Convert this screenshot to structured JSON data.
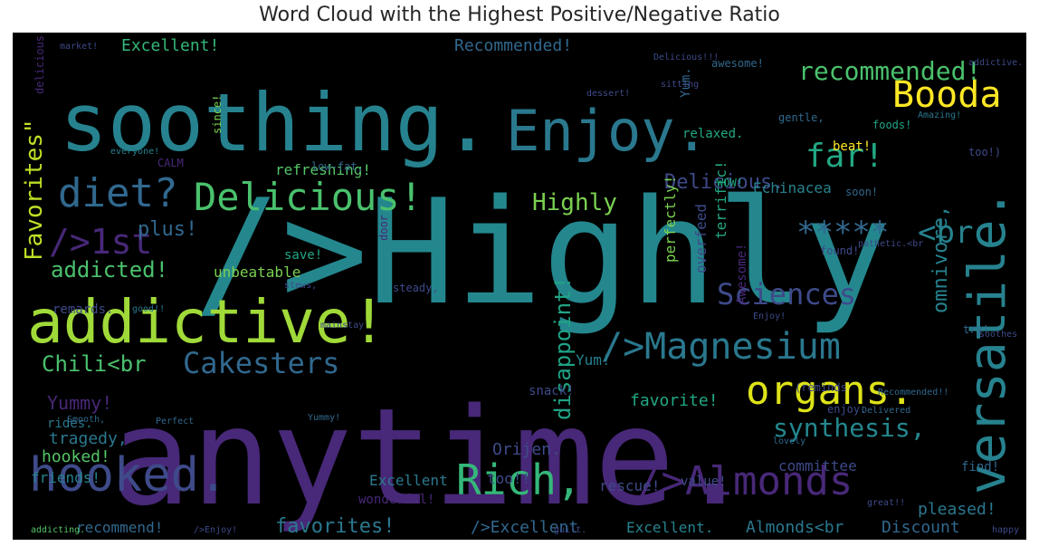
{
  "title": "Word Cloud with the Highest Positive/Negative Ratio",
  "chart_data": {
    "type": "wordcloud",
    "title": "Word Cloud with the Highest Positive/Negative Ratio",
    "background_color": "#000000",
    "colormap": "viridis",
    "words": [
      {
        "text": "/>Highly",
        "color": "#24878e"
      },
      {
        "text": "anytime.",
        "color": "#482878"
      },
      {
        "text": "soothing.",
        "color": "#26828e"
      },
      {
        "text": "Enjoy.",
        "color": "#2a788e"
      },
      {
        "text": "addictive!",
        "color": "#a0da39"
      },
      {
        "text": "hooked.",
        "color": "#3e4a89"
      },
      {
        "text": "Rich,",
        "color": "#35b779"
      },
      {
        "text": "/>Almonds",
        "color": "#482878"
      },
      {
        "text": "versatile.",
        "color": "#26828e"
      },
      {
        "text": "Delicious!",
        "color": "#4ac16d"
      },
      {
        "text": "organs.",
        "color": "#dde318"
      },
      {
        "text": "/>Magnesium",
        "color": "#2a788e"
      },
      {
        "text": "Booda",
        "color": "#fde725"
      },
      {
        "text": "diet?",
        "color": "#31688e"
      },
      {
        "text": "Cakesters",
        "color": "#31688e"
      },
      {
        "text": "far!",
        "color": "#22a884"
      },
      {
        "text": "Sciences",
        "color": "#3e4a89"
      },
      {
        "text": "/>1st",
        "color": "#482878"
      },
      {
        "text": "*****",
        "color": "#31688e"
      },
      {
        "text": "<br",
        "color": "#26828e"
      },
      {
        "text": "recommended!",
        "color": "#4ac16d"
      },
      {
        "text": "synthesis,",
        "color": "#24878e"
      },
      {
        "text": "Favorites\"",
        "color": "#bddf26"
      },
      {
        "text": "disappoint!",
        "color": "#20a486"
      },
      {
        "text": "addicted!",
        "color": "#4ac16d"
      },
      {
        "text": "favorites!",
        "color": "#2a788e"
      },
      {
        "text": "Highly",
        "color": "#7ad151"
      },
      {
        "text": "Chili<br",
        "color": "#4ac16d"
      },
      {
        "text": "plus!",
        "color": "#31688e"
      },
      {
        "text": "Delicious.",
        "color": "#3e4a89"
      },
      {
        "text": "omnivore,",
        "color": "#26828e"
      },
      {
        "text": "Yummy!",
        "color": "#482878"
      },
      {
        "text": "hooked!",
        "color": "#54c568"
      },
      {
        "text": "tragedy,",
        "color": "#2a788e"
      },
      {
        "text": "Excellent!",
        "color": "#35b779"
      },
      {
        "text": "Recommended!",
        "color": "#31688e"
      },
      {
        "text": "favorite!",
        "color": "#22a884"
      },
      {
        "text": "Almonds<br",
        "color": "#2a788e"
      },
      {
        "text": "Discount",
        "color": "#31688e"
      },
      {
        "text": "pleased!",
        "color": "#2a788e"
      },
      {
        "text": "Excellent.",
        "color": "#26828e"
      },
      {
        "text": "/>Excellent",
        "color": "#31688e"
      },
      {
        "text": "recommend!",
        "color": "#31688e"
      },
      {
        "text": "rescue!",
        "color": "#3e4a89"
      },
      {
        "text": "committee",
        "color": "#3e4a89"
      },
      {
        "text": "Excellent",
        "color": "#2a788e"
      },
      {
        "text": "wonderful!",
        "color": "#482878"
      },
      {
        "text": "Orijen.",
        "color": "#3e4a89"
      },
      {
        "text": "refreshing!",
        "color": "#54c568"
      },
      {
        "text": "unbeatable",
        "color": "#7ad151"
      },
      {
        "text": "Echinacea",
        "color": "#26828e"
      },
      {
        "text": "terrific!",
        "color": "#22a884"
      },
      {
        "text": "perfectly!",
        "color": "#7ad151"
      },
      {
        "text": "overfeed",
        "color": "#3e4a89"
      },
      {
        "text": "friends!",
        "color": "#26828e"
      },
      {
        "text": "rides.",
        "color": "#2a788e"
      },
      {
        "text": "too!!",
        "color": "#3e4a89"
      },
      {
        "text": "snack!",
        "color": "#3e4a89"
      },
      {
        "text": "Yum!",
        "color": "#26828e"
      },
      {
        "text": "value!",
        "color": "#3e4a89"
      },
      {
        "text": "relaxed.",
        "color": "#22a884"
      },
      {
        "text": "Yum.",
        "color": "#31688e"
      },
      {
        "text": "beat!",
        "color": "#fde725"
      },
      {
        "text": "save!",
        "color": "#22a884"
      },
      {
        "text": "remards.",
        "color": "#3e4a89"
      },
      {
        "text": "Awesome!",
        "color": "#482878"
      },
      {
        "text": "find!",
        "color": "#31688e"
      },
      {
        "text": "CALM",
        "color": "#482878"
      },
      {
        "text": "Smooth,",
        "color": "#31688e"
      },
      {
        "text": "enjoy.",
        "color": "#3e4a89"
      },
      {
        "text": "too!)",
        "color": "#3e4a89"
      },
      {
        "text": "foods!",
        "color": "#20a486"
      },
      {
        "text": "found!",
        "color": "#3e4a89"
      },
      {
        "text": "try!",
        "color": "#31688e"
      },
      {
        "text": "gentle,",
        "color": "#31688e"
      },
      {
        "text": "WOW!",
        "color": "#22a884"
      },
      {
        "text": "low-fat,",
        "color": "#31688e"
      },
      {
        "text": "everyone!",
        "color": "#26828e"
      },
      {
        "text": "since!",
        "color": "#7ad151"
      },
      {
        "text": "delicious!",
        "color": "#482878"
      },
      {
        "text": "awesome!",
        "color": "#31688e"
      },
      {
        "text": "sitting",
        "color": "#3e4a89"
      },
      {
        "text": "door",
        "color": "#482878"
      },
      {
        "text": "Yummy!",
        "color": "#31688e"
      },
      {
        "text": "stews,",
        "color": "#3e4a89"
      },
      {
        "text": "(reminds",
        "color": "#3e4a89"
      },
      {
        "text": "Amazing!",
        "color": "#2a788e"
      },
      {
        "text": "Delicious!!!",
        "color": "#3e4a89"
      },
      {
        "text": "dessert!",
        "color": "#3e4a89"
      },
      {
        "text": "soon!",
        "color": "#31688e"
      },
      {
        "text": "great!!",
        "color": "#3e4a89"
      },
      {
        "text": "addictive.",
        "color": "#3e4a89"
      },
      {
        "text": "Perfect",
        "color": "#31688e"
      },
      {
        "text": "Enjoy!",
        "color": "#3e4a89"
      },
      {
        "text": "/>Enjoy!",
        "color": "#3e4a89"
      },
      {
        "text": "soothes",
        "color": "#3e4a89"
      },
      {
        "text": "lovely",
        "color": "#31688e"
      },
      {
        "text": "addicting.",
        "color": "#54c568"
      },
      {
        "text": "market!",
        "color": "#3e4a89"
      },
      {
        "text": "pathetic.<br",
        "color": "#3e4a89"
      },
      {
        "text": "Delivered",
        "color": "#31688e"
      },
      {
        "text": "Recommended!!",
        "color": "#31688e"
      },
      {
        "text": "guilt.",
        "color": "#3e4a89"
      },
      {
        "text": "happy",
        "color": "#3e4a89"
      },
      {
        "text": "good!!",
        "color": "#2a788e"
      },
      {
        "text": "steady,",
        "color": "#3e4a89"
      },
      {
        "text": "mainstay",
        "color": "#3e4a89"
      }
    ]
  }
}
